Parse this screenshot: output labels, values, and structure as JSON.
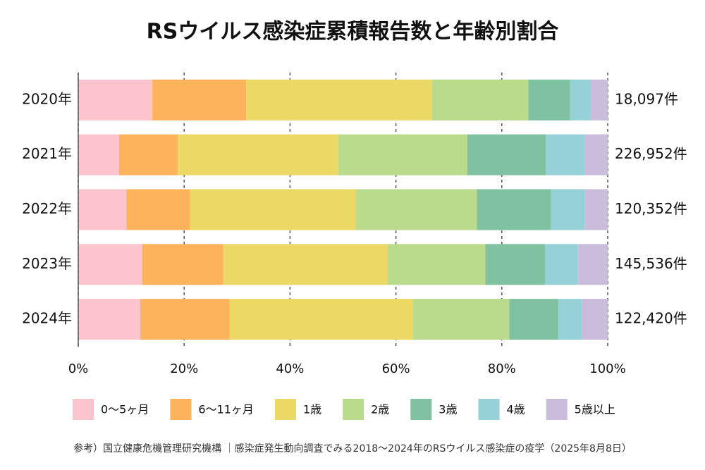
{
  "chart_data": {
    "type": "stacked_bar_100",
    "title": "RSウイルス感染症累積報告数と年齢別割合",
    "categories": [
      "2020年",
      "2021年",
      "2022年",
      "2023年",
      "2024年"
    ],
    "totals": [
      "18,097件",
      "226,952件",
      "120,352件",
      "145,536件",
      "122,420件"
    ],
    "series": [
      {
        "name": "0～5ヶ月",
        "color": "#fcc5cd",
        "values": [
          14.0,
          7.7,
          9.1,
          12.1,
          11.7
        ]
      },
      {
        "name": "6～11ヶ月",
        "color": "#fdb35b",
        "values": [
          17.7,
          11.1,
          12.0,
          15.3,
          16.9
        ]
      },
      {
        "name": "1歳",
        "color": "#ecd965",
        "values": [
          35.1,
          30.3,
          31.3,
          31.0,
          34.6
        ]
      },
      {
        "name": "2歳",
        "color": "#badb8c",
        "values": [
          18.2,
          24.4,
          22.9,
          18.5,
          18.2
        ]
      },
      {
        "name": "3歳",
        "color": "#7fc1a0",
        "values": [
          7.9,
          14.8,
          14.0,
          11.3,
          9.3
        ]
      },
      {
        "name": "4歳",
        "color": "#96d1d8",
        "values": [
          3.9,
          7.3,
          6.4,
          6.1,
          4.4
        ]
      },
      {
        "name": "5歳以上",
        "color": "#cabcdb",
        "values": [
          3.2,
          4.4,
          4.3,
          5.7,
          4.9
        ]
      }
    ],
    "xlim": [
      0,
      100
    ],
    "xticks": [
      {
        "value": 0,
        "label": "0%"
      },
      {
        "value": 20,
        "label": "20%"
      },
      {
        "value": 40,
        "label": "40%"
      },
      {
        "value": 60,
        "label": "60%"
      },
      {
        "value": 80,
        "label": "80%"
      },
      {
        "value": 100,
        "label": "100%"
      }
    ],
    "grid": true,
    "source": "参考）国立健康危機管理研究機構 ｜感染症発生動向調査でみる2018～2024年のRSウイルス感染症の疫学（2025年8月8日）"
  }
}
